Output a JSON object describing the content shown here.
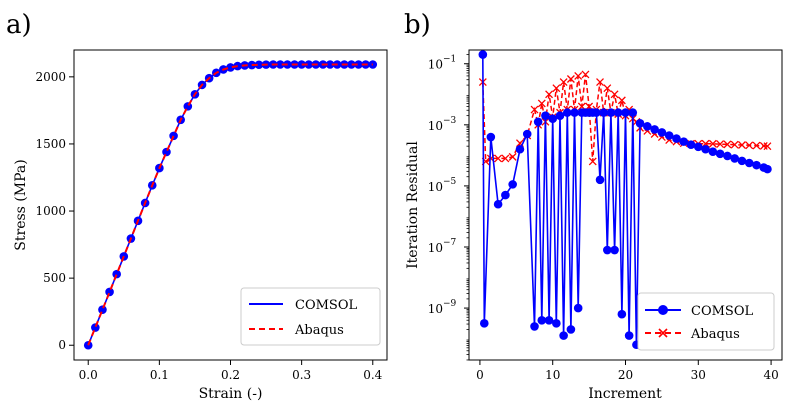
{
  "colors": {
    "comsol": "#0000ff",
    "abaqus": "#ff0000",
    "axis": "#000000",
    "legend_border": "#cccccc"
  },
  "chart_data": [
    {
      "panel_label": "a)",
      "type": "line",
      "xlabel": "Strain (-)",
      "ylabel": "Stress (MPa)",
      "xlim": [
        -0.02,
        0.42
      ],
      "ylim": [
        -110,
        2200
      ],
      "xticks": [
        0.0,
        0.1,
        0.2,
        0.3,
        0.4
      ],
      "xtick_labels": [
        "0.0",
        "0.1",
        "0.2",
        "0.3",
        "0.4"
      ],
      "yticks": [
        0,
        500,
        1000,
        1500,
        2000
      ],
      "ytick_labels": [
        "0",
        "500",
        "1000",
        "1500",
        "2000"
      ],
      "legend": {
        "position": "bottom-right",
        "entries": [
          "COMSOL",
          "Abaqus"
        ]
      },
      "x": [
        0.0,
        0.01,
        0.02,
        0.03,
        0.04,
        0.05,
        0.06,
        0.07,
        0.08,
        0.09,
        0.1,
        0.11,
        0.12,
        0.13,
        0.14,
        0.15,
        0.16,
        0.17,
        0.18,
        0.19,
        0.2,
        0.21,
        0.22,
        0.23,
        0.24,
        0.25,
        0.26,
        0.27,
        0.28,
        0.29,
        0.3,
        0.31,
        0.32,
        0.33,
        0.34,
        0.35,
        0.36,
        0.37,
        0.38,
        0.39,
        0.4
      ],
      "series": [
        {
          "name": "COMSOL",
          "style": "solid-line-circle-markers",
          "values": [
            0,
            132,
            265,
            397,
            530,
            662,
            795,
            927,
            1060,
            1192,
            1320,
            1440,
            1560,
            1680,
            1780,
            1870,
            1940,
            1990,
            2030,
            2055,
            2070,
            2080,
            2085,
            2088,
            2090,
            2091,
            2092,
            2092,
            2092,
            2092,
            2092,
            2092,
            2092,
            2092,
            2092,
            2092,
            2092,
            2092,
            2092,
            2092,
            2092
          ]
        },
        {
          "name": "Abaqus",
          "style": "dashed-line",
          "values": [
            0,
            132,
            265,
            397,
            530,
            662,
            795,
            927,
            1060,
            1192,
            1320,
            1440,
            1560,
            1680,
            1780,
            1870,
            1940,
            1990,
            2030,
            2055,
            2070,
            2080,
            2085,
            2088,
            2090,
            2091,
            2092,
            2092,
            2092,
            2092,
            2092,
            2092,
            2092,
            2092,
            2092,
            2092,
            2092,
            2092,
            2092,
            2092,
            2092
          ]
        }
      ]
    },
    {
      "panel_label": "b)",
      "type": "line",
      "yscale": "log",
      "xlabel": "Increment",
      "ylabel": "Iteration Residual",
      "xlim": [
        -1.5,
        41.5
      ],
      "ylim_log10": [
        -10.7,
        -0.55
      ],
      "xticks": [
        0,
        10,
        20,
        30,
        40
      ],
      "xtick_labels": [
        "0",
        "10",
        "20",
        "30",
        "40"
      ],
      "yticks_log10": [
        -9,
        -7,
        -5,
        -3,
        -1
      ],
      "ytick_labels": [
        {
          "base": "10",
          "exp": "−9"
        },
        {
          "base": "10",
          "exp": "−7"
        },
        {
          "base": "10",
          "exp": "−5"
        },
        {
          "base": "10",
          "exp": "−3"
        },
        {
          "base": "10",
          "exp": "−1"
        }
      ],
      "legend": {
        "position": "bottom-right",
        "entries": [
          "COMSOL",
          "Abaqus"
        ]
      },
      "series": [
        {
          "name": "COMSOL",
          "style": "solid-line-circle-markers",
          "x": [
            0.4,
            0.6,
            1.5,
            2.5,
            3.5,
            4.5,
            5.5,
            6.5,
            7.5,
            8,
            8.5,
            9,
            9.5,
            10,
            10.5,
            11,
            11.5,
            12,
            12.5,
            13,
            13.5,
            14,
            14.5,
            15,
            15.5,
            16,
            16.5,
            17,
            17.5,
            18,
            18.5,
            19,
            19.5,
            20,
            20.5,
            21,
            21.5,
            22,
            23,
            24,
            25,
            26,
            27,
            28,
            29,
            30,
            31,
            32,
            33,
            34,
            35,
            36,
            37,
            38,
            39,
            39.5
          ],
          "log10": [
            -0.7,
            -9.5,
            -3.4,
            -5.6,
            -5.3,
            -4.95,
            -3.8,
            -3.3,
            -9.6,
            -2.9,
            -9.4,
            -2.7,
            -9.4,
            -2.8,
            -9.5,
            -2.7,
            -9.9,
            -2.6,
            -9.7,
            -2.6,
            -9.0,
            -2.6,
            -2.6,
            -2.6,
            -2.6,
            -2.6,
            -4.8,
            -2.6,
            -7.1,
            -2.6,
            -7.1,
            -2.6,
            -9.2,
            -2.6,
            -9.9,
            -2.6,
            -10.2,
            -2.95,
            -3.05,
            -3.15,
            -3.25,
            -3.35,
            -3.45,
            -3.55,
            -3.65,
            -3.72,
            -3.8,
            -3.88,
            -3.95,
            -4.02,
            -4.1,
            -4.18,
            -4.25,
            -4.32,
            -4.4,
            -4.45
          ]
        },
        {
          "name": "Abaqus",
          "style": "dashed-line-x-markers",
          "x": [
            0.4,
            0.8,
            1.5,
            2.5,
            3.5,
            4.5,
            5.5,
            6.5,
            7.5,
            8,
            8.5,
            9,
            9.5,
            10,
            10.5,
            11,
            11.5,
            12,
            12.5,
            13,
            13.5,
            14,
            14.5,
            15,
            15.5,
            16,
            16.5,
            17,
            17.5,
            18,
            18.5,
            19,
            19.5,
            20,
            20.5,
            21,
            21.5,
            22,
            23,
            24,
            25,
            26,
            27,
            28,
            29,
            30,
            31,
            32,
            33,
            34,
            35,
            36,
            37,
            38,
            39,
            39.5
          ],
          "log10": [
            -1.6,
            -4.2,
            -4.1,
            -4.1,
            -4.1,
            -4.05,
            -3.6,
            -3.35,
            -2.5,
            -3.0,
            -2.3,
            -2.9,
            -2.0,
            -2.75,
            -1.8,
            -2.6,
            -1.6,
            -2.5,
            -1.5,
            -2.5,
            -1.4,
            -2.4,
            -1.35,
            -2.4,
            -4.2,
            -2.5,
            -1.6,
            -2.6,
            -1.8,
            -2.6,
            -2.0,
            -2.65,
            -2.2,
            -2.7,
            -2.5,
            -2.8,
            -2.9,
            -3.1,
            -3.2,
            -3.3,
            -3.4,
            -3.5,
            -3.55,
            -3.6,
            -3.62,
            -3.62,
            -3.62,
            -3.62,
            -3.63,
            -3.64,
            -3.65,
            -3.66,
            -3.67,
            -3.68,
            -3.69,
            -3.7
          ]
        }
      ]
    }
  ]
}
